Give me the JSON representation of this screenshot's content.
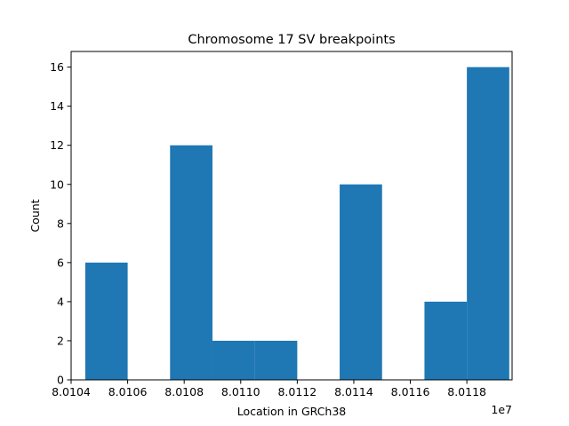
{
  "chart_data": {
    "type": "bar",
    "title": "Chromosome 17 SV breakpoints",
    "xlabel": "Location in GRCh38",
    "ylabel": "Count",
    "x_offset_label": "1e7",
    "bin_edges": [
      8.01045,
      8.0106,
      8.01075,
      8.0109,
      8.01105,
      8.0112,
      8.01135,
      8.0115,
      8.01165,
      8.0118,
      8.01195
    ],
    "edge_units": "1e7",
    "values": [
      6,
      0,
      12,
      2,
      2,
      0,
      10,
      0,
      4,
      16
    ],
    "xlim": [
      8.0104,
      8.01196
    ],
    "ylim": [
      0,
      16.8
    ],
    "xticks": [
      8.0104,
      8.0106,
      8.0108,
      8.011,
      8.0112,
      8.0114,
      8.0116,
      8.0118
    ],
    "xtick_labels": [
      "8.0104",
      "8.0106",
      "8.0108",
      "8.0110",
      "8.0112",
      "8.0114",
      "8.0116",
      "8.0118"
    ],
    "yticks": [
      0,
      2,
      4,
      6,
      8,
      10,
      12,
      14,
      16
    ],
    "ytick_labels": [
      "0",
      "2",
      "4",
      "6",
      "8",
      "10",
      "12",
      "14",
      "16"
    ],
    "bar_color": "#1f77b4",
    "grid": false,
    "legend": "none"
  }
}
